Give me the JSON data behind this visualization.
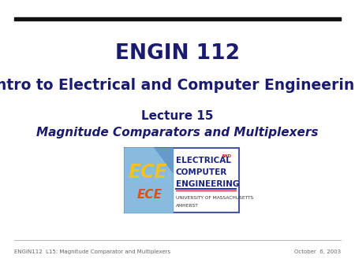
{
  "title1": "ENGIN 112",
  "title2": "Intro to Electrical and Computer Engineering",
  "lecture_line1": "Lecture 15",
  "lecture_line2": "Magnitude Comparators and Multiplexers",
  "footer_left": "ENGIN112  L15: Magnitude Comparator and Multiplexers",
  "footer_right": "October  6, 2003",
  "bg_color": "#ffffff",
  "title_color": "#1a1a6e",
  "top_bar_color": "#111111",
  "footer_color": "#666666",
  "logo_border_color": "#4455aa",
  "logo_left_bg": "#6699cc",
  "logo_right_bg": "#ffffff",
  "ece_top_color": "#f5c020",
  "ece_bot_color": "#e05010",
  "elec_color": "#1a237e",
  "and_color": "#cc1111",
  "underline_blue": "#2233aa",
  "underline_red": "#cc1111",
  "univ_color": "#333333"
}
